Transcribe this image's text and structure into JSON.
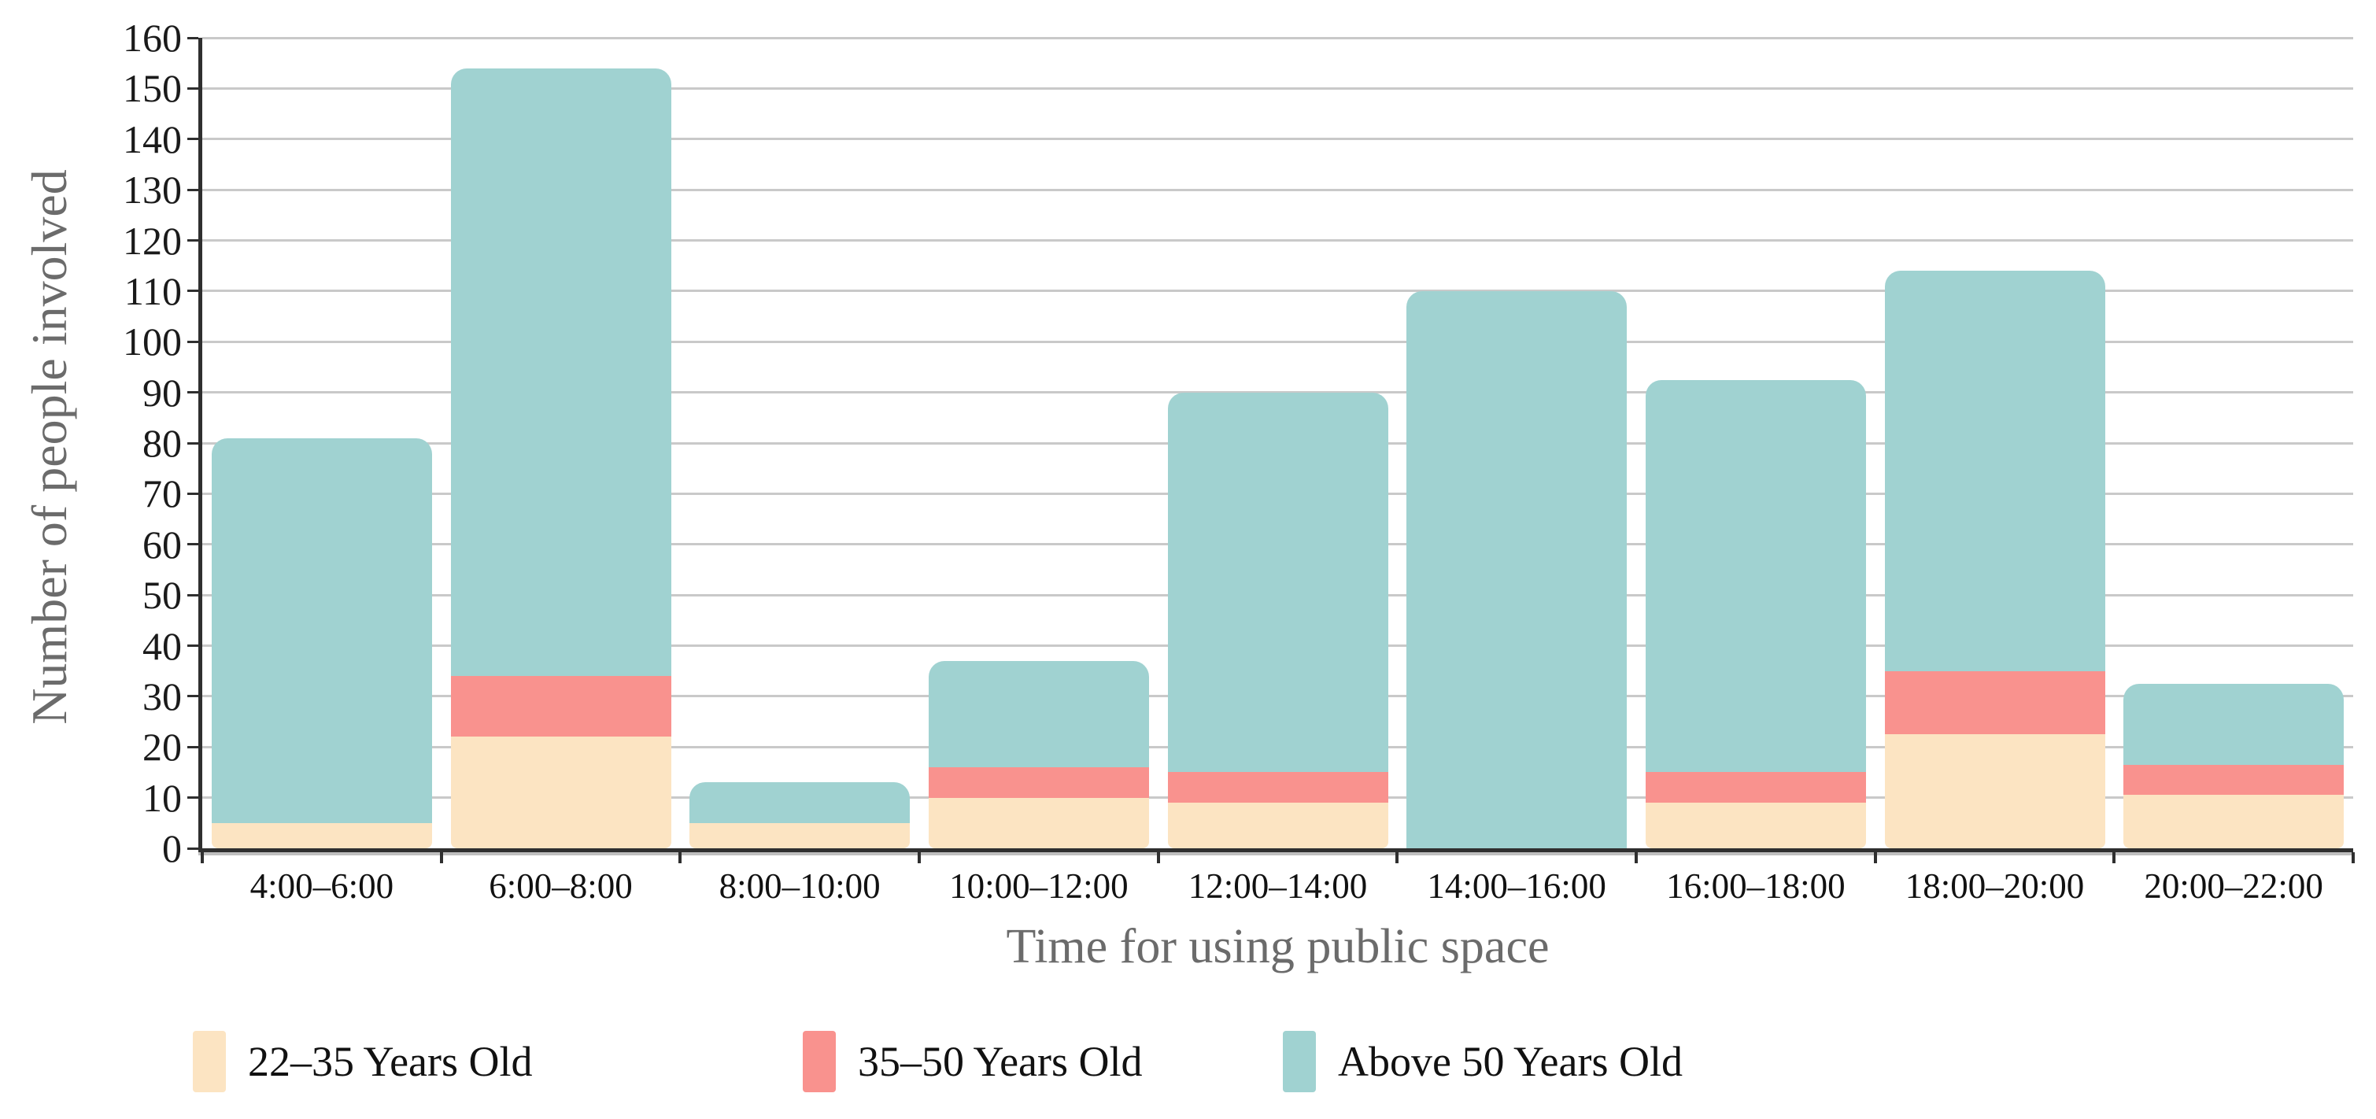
{
  "chart_data": {
    "type": "bar",
    "stacked": true,
    "title": "",
    "xlabel": "Time for using public space",
    "ylabel": "Number of people involved",
    "ylim": [
      0,
      160
    ],
    "ytick_step": 10,
    "yticks": [
      0,
      10,
      20,
      30,
      40,
      50,
      60,
      70,
      80,
      90,
      100,
      110,
      120,
      130,
      140,
      150,
      160
    ],
    "grid": true,
    "legend_position": "bottom",
    "categories": [
      "4:00–6:00",
      "6:00–8:00",
      "8:00–10:00",
      "10:00–12:00",
      "12:00–14:00",
      "14:00–16:00",
      "16:00–18:00",
      "18:00–20:00",
      "20:00–22:00"
    ],
    "series": [
      {
        "name": "22–35 Years Old",
        "color": "#fce4c2",
        "values": [
          5,
          22,
          5,
          10,
          9,
          0,
          9,
          22.5,
          10.5
        ]
      },
      {
        "name": "35–50 Years Old",
        "color": "#f9928e",
        "values": [
          0,
          12,
          0,
          6,
          6,
          0,
          6,
          12.5,
          6
        ]
      },
      {
        "name": "Above 50 Years Old",
        "color": "#a0d2d1",
        "values": [
          76,
          120,
          8,
          21,
          75,
          110,
          77.5,
          79,
          16
        ]
      }
    ],
    "totals": [
      81,
      154,
      13,
      37,
      90,
      110,
      92.5,
      114,
      32.5
    ]
  },
  "colors": {
    "background": "#ffffff",
    "gridline": "#c9c9c9",
    "axis": "#2f2f2f",
    "axis_title_text": "#6b6b6b",
    "tick_label_text": "#111111",
    "series_22_35": "#fce4c2",
    "series_35_50": "#f9928e",
    "series_above_50": "#a0d2d1"
  },
  "legend_x_positions": [
    245,
    1020,
    1630
  ]
}
